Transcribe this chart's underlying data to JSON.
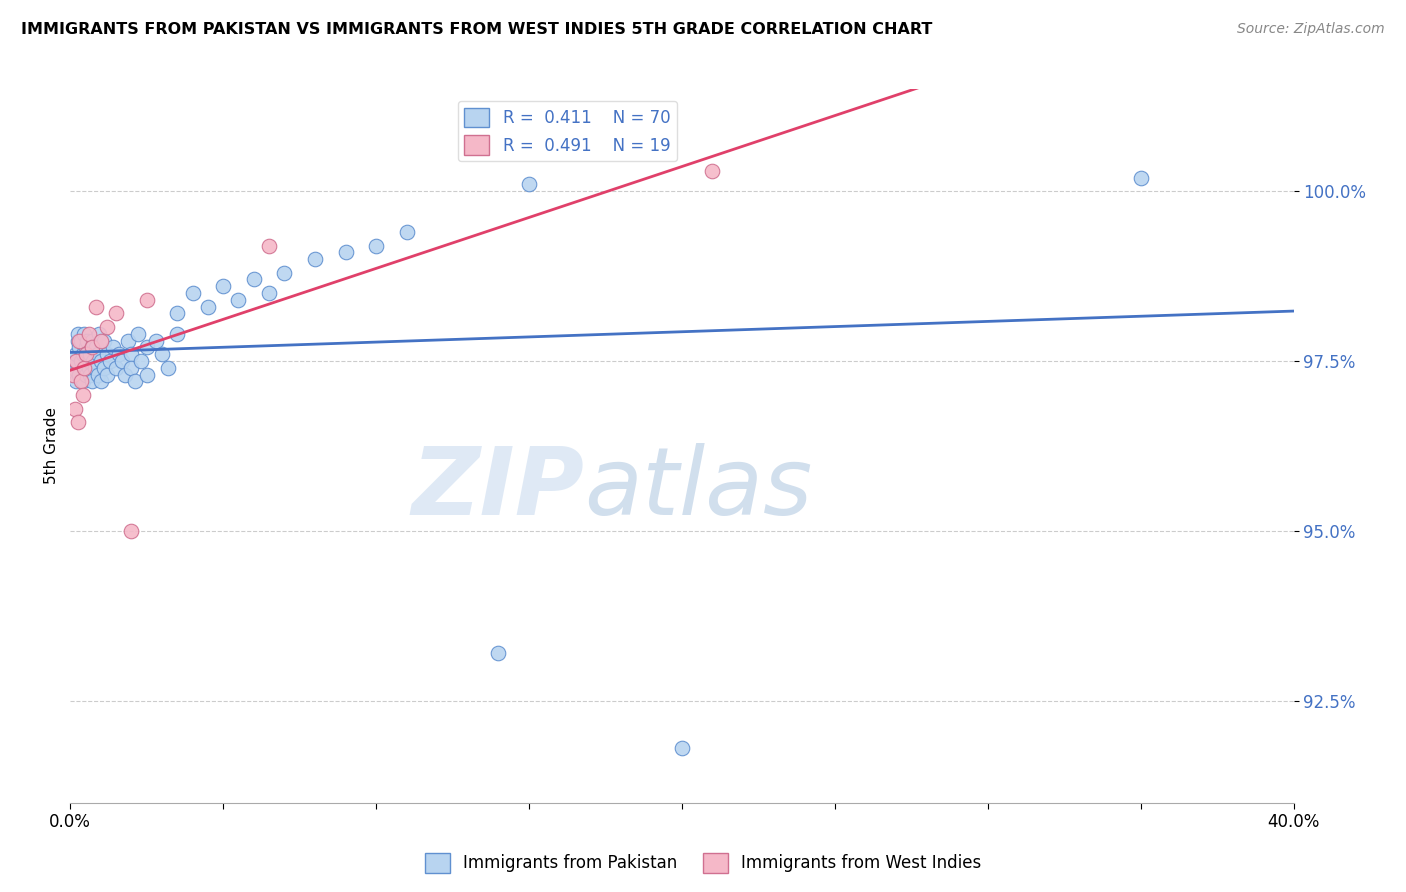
{
  "title": "IMMIGRANTS FROM PAKISTAN VS IMMIGRANTS FROM WEST INDIES 5TH GRADE CORRELATION CHART",
  "source": "Source: ZipAtlas.com",
  "ylabel": "5th Grade",
  "xlim": [
    0.0,
    40.0
  ],
  "ylim": [
    91.0,
    101.5
  ],
  "yticks": [
    92.5,
    95.0,
    97.5,
    100.0
  ],
  "ytick_labels": [
    "92.5%",
    "95.0%",
    "97.5%",
    "100.0%"
  ],
  "legend_R1": "R = 0.411",
  "legend_N1": "N = 70",
  "legend_R2": "R = 0.491",
  "legend_N2": "N = 19",
  "series1_color": "#b8d4f0",
  "series1_edge": "#6090d0",
  "series2_color": "#f5b8c8",
  "series2_edge": "#d07090",
  "line1_color": "#4472c4",
  "line2_color": "#e0406a",
  "watermark_zip": "ZIP",
  "watermark_atlas": "atlas",
  "pakistan_x": [
    0.1,
    0.15,
    0.2,
    0.2,
    0.25,
    0.25,
    0.3,
    0.3,
    0.35,
    0.35,
    0.4,
    0.4,
    0.45,
    0.45,
    0.5,
    0.5,
    0.55,
    0.55,
    0.6,
    0.6,
    0.65,
    0.65,
    0.7,
    0.7,
    0.75,
    0.8,
    0.85,
    0.9,
    0.9,
    0.95,
    1.0,
    1.0,
    1.1,
    1.1,
    1.2,
    1.2,
    1.3,
    1.4,
    1.5,
    1.6,
    1.7,
    1.8,
    1.9,
    2.0,
    2.0,
    2.1,
    2.2,
    2.3,
    2.5,
    2.5,
    2.8,
    3.0,
    3.2,
    3.5,
    3.5,
    4.0,
    4.5,
    5.0,
    5.5,
    6.0,
    6.5,
    7.0,
    8.0,
    9.0,
    10.0,
    11.0,
    14.0,
    15.0,
    20.0,
    35.0
  ],
  "pakistan_y": [
    97.4,
    97.5,
    97.2,
    97.6,
    97.8,
    97.9,
    97.3,
    97.7,
    97.5,
    97.8,
    97.2,
    97.6,
    97.4,
    97.9,
    97.3,
    97.7,
    97.6,
    97.8,
    97.4,
    97.5,
    97.3,
    97.6,
    97.8,
    97.2,
    97.5,
    97.4,
    97.7,
    97.6,
    97.3,
    97.9,
    97.5,
    97.2,
    97.8,
    97.4,
    97.6,
    97.3,
    97.5,
    97.7,
    97.4,
    97.6,
    97.5,
    97.3,
    97.8,
    97.6,
    97.4,
    97.2,
    97.9,
    97.5,
    97.7,
    97.3,
    97.8,
    97.6,
    97.4,
    97.9,
    98.2,
    98.5,
    98.3,
    98.6,
    98.4,
    98.7,
    98.5,
    98.8,
    99.0,
    99.1,
    99.2,
    99.4,
    93.2,
    100.1,
    91.8,
    100.2
  ],
  "westindies_x": [
    0.1,
    0.15,
    0.2,
    0.25,
    0.3,
    0.35,
    0.4,
    0.45,
    0.5,
    0.6,
    0.7,
    0.85,
    1.0,
    1.2,
    1.5,
    2.0,
    2.5,
    6.5,
    21.0
  ],
  "westindies_y": [
    97.3,
    96.8,
    97.5,
    96.6,
    97.8,
    97.2,
    97.0,
    97.4,
    97.6,
    97.9,
    97.7,
    98.3,
    97.8,
    98.0,
    98.2,
    95.0,
    98.4,
    99.2,
    100.3
  ]
}
